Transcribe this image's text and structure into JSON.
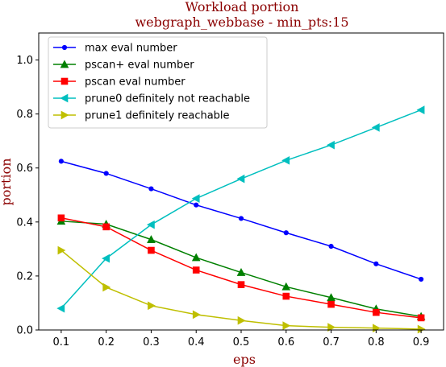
{
  "chart_data": {
    "type": "line",
    "title": "Workload portion",
    "subtitle": "webgraph_webbase - min_pts:15",
    "xlabel": "eps",
    "ylabel": "portion",
    "x": [
      0.1,
      0.2,
      0.3,
      0.4,
      0.5,
      0.6,
      0.7,
      0.8,
      0.9
    ],
    "xlim": [
      0.05,
      0.95
    ],
    "ylim": [
      0.0,
      1.1
    ],
    "xticks": [
      "0.1",
      "0.2",
      "0.3",
      "0.4",
      "0.5",
      "0.6",
      "0.7",
      "0.8",
      "0.9"
    ],
    "yticks": [
      "0.0",
      "0.2",
      "0.4",
      "0.6",
      "0.8",
      "1.0"
    ],
    "grid": false,
    "legend_position": "top-left",
    "series": [
      {
        "name": "max eval number",
        "color": "#0000ff",
        "marker": "point",
        "values": [
          0.625,
          0.58,
          0.523,
          0.463,
          0.413,
          0.36,
          0.31,
          0.245,
          0.188
        ]
      },
      {
        "name": "pscan+ eval number",
        "color": "#008000",
        "marker": "triangle-up",
        "values": [
          0.403,
          0.392,
          0.335,
          0.268,
          0.213,
          0.16,
          0.12,
          0.078,
          0.05
        ]
      },
      {
        "name": "pscan eval number",
        "color": "#ff0000",
        "marker": "square",
        "values": [
          0.415,
          0.382,
          0.295,
          0.222,
          0.168,
          0.125,
          0.095,
          0.065,
          0.045
        ]
      },
      {
        "name": "prune0 definitely not reachable",
        "color": "#00bfbf",
        "marker": "triangle-left",
        "values": [
          0.08,
          0.265,
          0.39,
          0.487,
          0.56,
          0.628,
          0.685,
          0.75,
          0.815
        ]
      },
      {
        "name": "prune1 definitely reachable",
        "color": "#bfbf00",
        "marker": "triangle-right",
        "values": [
          0.295,
          0.158,
          0.09,
          0.057,
          0.035,
          0.016,
          0.01,
          0.007,
          0.003
        ]
      }
    ]
  }
}
